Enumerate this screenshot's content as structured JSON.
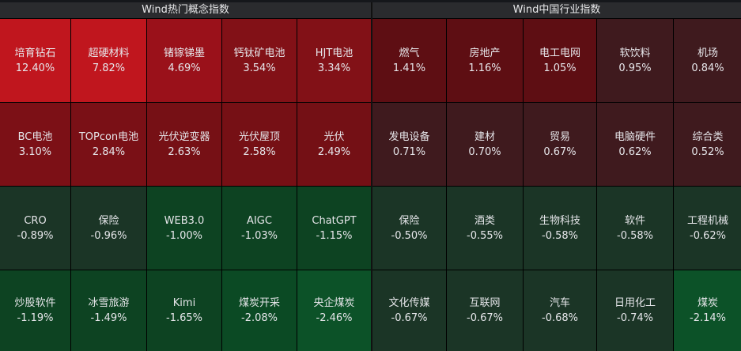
{
  "colors": {
    "header_bg": "#2a2b2e",
    "up_strong": "#c0161e",
    "up_mid": "#9a111a",
    "up": "#821117",
    "up_weak": "#5e0e13",
    "up_faint": "#3f1a1e",
    "down_faint": "#1b3526",
    "down": "#0d4322",
    "down_mid": "#0b4a24",
    "down_strong": "#0c5228"
  },
  "panels": [
    {
      "title": "Wind热门概念指数",
      "cells": [
        {
          "name": "培育钻石",
          "change": "12.40%",
          "color": "#c0161e"
        },
        {
          "name": "超硬材料",
          "change": "7.82%",
          "color": "#c0161e"
        },
        {
          "name": "锗镓锑墨",
          "change": "4.69%",
          "color": "#9a111a"
        },
        {
          "name": "钙钛矿电池",
          "change": "3.54%",
          "color": "#821117"
        },
        {
          "name": "HJT电池",
          "change": "3.34%",
          "color": "#821117"
        },
        {
          "name": "BC电池",
          "change": "3.10%",
          "color": "#7c1016"
        },
        {
          "name": "TOPcon电池",
          "change": "2.84%",
          "color": "#7a1016"
        },
        {
          "name": "光伏逆变器",
          "change": "2.63%",
          "color": "#761015"
        },
        {
          "name": "光伏屋顶",
          "change": "2.58%",
          "color": "#761015"
        },
        {
          "name": "光伏",
          "change": "2.49%",
          "color": "#741015"
        },
        {
          "name": "CRO",
          "change": "-0.89%",
          "color": "#1b3526"
        },
        {
          "name": "保险",
          "change": "-0.96%",
          "color": "#1b3526"
        },
        {
          "name": "WEB3.0",
          "change": "-1.00%",
          "color": "#0d4322"
        },
        {
          "name": "AIGC",
          "change": "-1.03%",
          "color": "#0d4322"
        },
        {
          "name": "ChatGPT",
          "change": "-1.15%",
          "color": "#0d4322"
        },
        {
          "name": "炒股软件",
          "change": "-1.19%",
          "color": "#0d4322"
        },
        {
          "name": "冰雪旅游",
          "change": "-1.49%",
          "color": "#0d4322"
        },
        {
          "name": "Kimi",
          "change": "-1.65%",
          "color": "#0d4322"
        },
        {
          "name": "煤炭开采",
          "change": "-2.08%",
          "color": "#0b4a24"
        },
        {
          "name": "央企煤炭",
          "change": "-2.46%",
          "color": "#0c5228"
        }
      ]
    },
    {
      "title": "Wind中国行业指数",
      "cells": [
        {
          "name": "燃气",
          "change": "1.41%",
          "color": "#5e0e13"
        },
        {
          "name": "房地产",
          "change": "1.16%",
          "color": "#5e0e13"
        },
        {
          "name": "电工电网",
          "change": "1.05%",
          "color": "#5e0e13"
        },
        {
          "name": "软饮料",
          "change": "0.95%",
          "color": "#3f1a1e"
        },
        {
          "name": "机场",
          "change": "0.84%",
          "color": "#3f1a1e"
        },
        {
          "name": "发电设备",
          "change": "0.71%",
          "color": "#3f1a1e"
        },
        {
          "name": "建材",
          "change": "0.70%",
          "color": "#3f1a1e"
        },
        {
          "name": "贸易",
          "change": "0.67%",
          "color": "#3f1a1e"
        },
        {
          "name": "电脑硬件",
          "change": "0.62%",
          "color": "#3f1a1e"
        },
        {
          "name": "综合类",
          "change": "0.52%",
          "color": "#3f1a1e"
        },
        {
          "name": "保险",
          "change": "-0.50%",
          "color": "#1b3526"
        },
        {
          "name": "酒类",
          "change": "-0.55%",
          "color": "#1b3526"
        },
        {
          "name": "生物科技",
          "change": "-0.58%",
          "color": "#1b3526"
        },
        {
          "name": "软件",
          "change": "-0.58%",
          "color": "#1b3526"
        },
        {
          "name": "工程机械",
          "change": "-0.62%",
          "color": "#1b3526"
        },
        {
          "name": "文化传媒",
          "change": "-0.67%",
          "color": "#1b3526"
        },
        {
          "name": "互联网",
          "change": "-0.67%",
          "color": "#1b3526"
        },
        {
          "name": "汽车",
          "change": "-0.68%",
          "color": "#1b3526"
        },
        {
          "name": "日用化工",
          "change": "-0.74%",
          "color": "#1b3526"
        },
        {
          "name": "煤炭",
          "change": "-2.14%",
          "color": "#0c5228"
        }
      ]
    }
  ]
}
